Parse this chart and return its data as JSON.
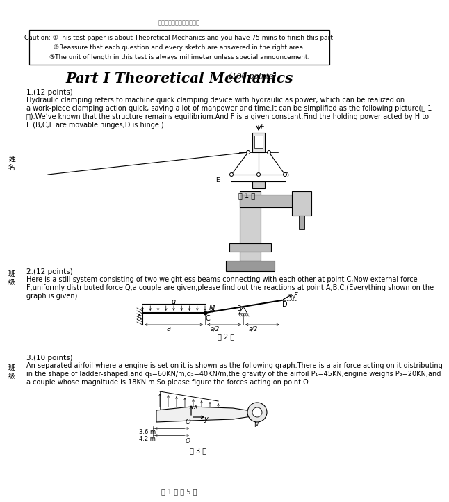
{
  "title_header": "期末考试理论力学模拟考卷",
  "caution_lines": [
    "Caution: ①This test paper is about Theoretical Mechanics,and you have 75 mins to finish this part.",
    "②Reassure that each question and every sketch are answered in the right area.",
    "③The unit of length in this test is always millimeter unless special announcement."
  ],
  "part_title": "Part I Theoretical Mechanics",
  "part_points": "(100 points)",
  "q1_header": "1.(12 points)",
  "q1_text": [
    "Hydraulic clamping refers to machine quick clamping device with hydraulic as power, which can be realized on",
    "a work-piece clamping action quick, saving a lot of manpower and time.It can be simplified as the following picture(图 1",
    "图).We’ve known that the structure remains equilibrium.And F is a given constant.Find the holding power acted by H to",
    "E.(B,C,E are movable hinges,D is hinge.)"
  ],
  "q2_header": "2.(12 points)",
  "q2_text": [
    "Here is a still system consisting of two weightless beams connecting with each other at point C,Now external force",
    "F,uniformly distributed force Q,a couple are given,please find out the reactions at point A,B,C.(Everything shown on the",
    "graph is given)"
  ],
  "q3_header": "3.(10 points)",
  "q3_text": [
    "An separated airfoil where a engine is set on it is shown as the following graph.There is a air force acting on it distributing",
    "in the shape of ladder-shaped,and q₁=60KN/m,q₂=40KN/m,the gravity of the airfoil P₁=45KN,engine weighs P₂=20KN,and",
    "a couple whose magnitude is 18KN·m.So please figure the forces acting on point O."
  ],
  "side_labels": [
    "姓名",
    "班级",
    "姓名"
  ],
  "footer": "第 1 页 共 5 页",
  "bg_color": "#ffffff",
  "text_color": "#000000"
}
